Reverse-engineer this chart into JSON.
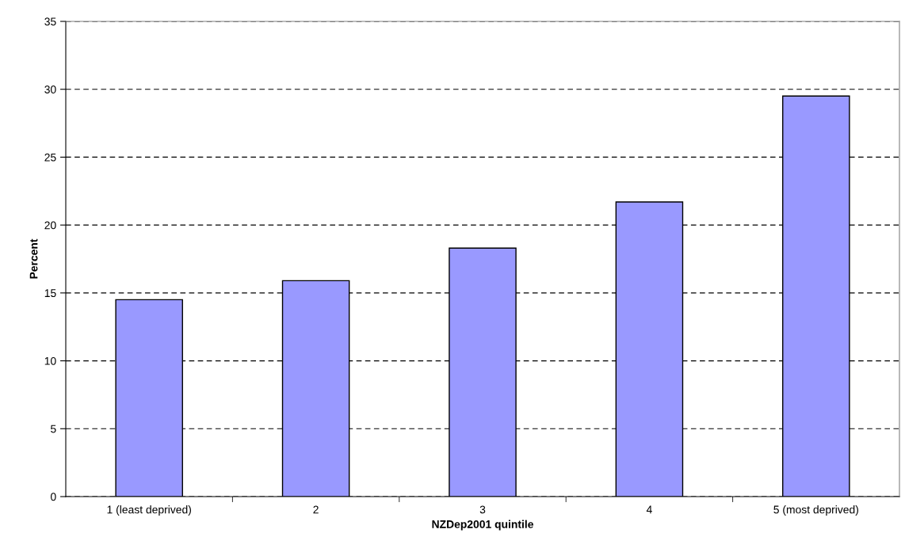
{
  "chart_data": {
    "type": "bar",
    "xlabel": "NZDep2001 quintile",
    "ylabel": "Percent",
    "categories": [
      "1 (least deprived)",
      "2",
      "3",
      "4",
      "5 (most deprived)"
    ],
    "values": [
      14.5,
      15.9,
      18.3,
      21.7,
      29.5
    ],
    "color": "#9999ff",
    "ylim": [
      0,
      35
    ],
    "yticks": [
      0,
      5,
      10,
      15,
      20,
      25,
      30,
      35
    ],
    "grid": "y",
    "legend": false
  }
}
